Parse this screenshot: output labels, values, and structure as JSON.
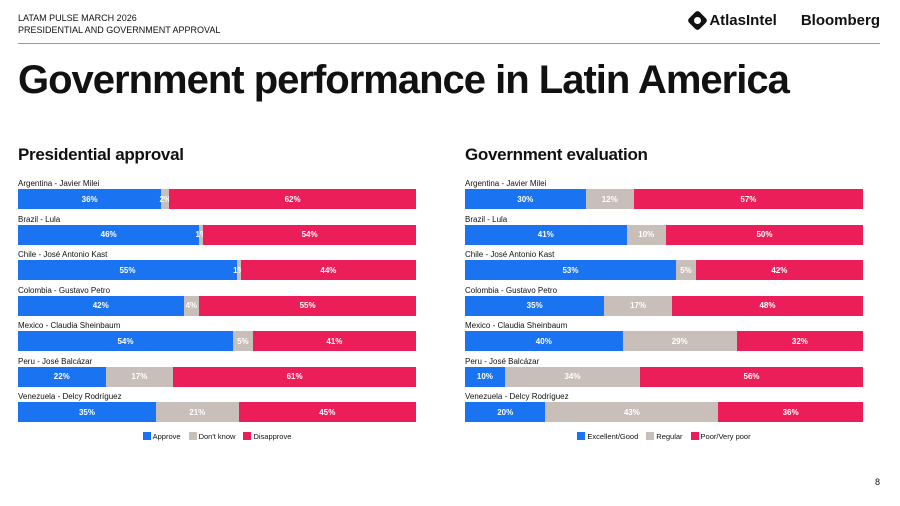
{
  "header": {
    "line1": "LATAM PULSE MARCH 2026",
    "line2": "PRESIDENTIAL AND GOVERNMENT APPROVAL",
    "logo1": "AtlasIntel",
    "logo2": "Bloomberg"
  },
  "title": "Government performance in Latin America",
  "page_number": "8",
  "colors": {
    "blue": "#1a73f0",
    "gray": "#c8bfba",
    "pink": "#ec1e5a"
  },
  "chart_data": [
    {
      "type": "bar",
      "orientation": "horizontal-stacked-100",
      "title": "Presidential approval",
      "categories": [
        "Argentina - Javier Milei",
        "Brazil - Lula",
        "Chile - José Antonio Kast",
        "Colombia - Gustavo Petro",
        "Mexico - Claudia Sheinbaum",
        "Peru - José Balcázar",
        "Venezuela - Delcy Rodríguez"
      ],
      "series": [
        {
          "name": "Approve",
          "color": "#1a73f0",
          "values": [
            36,
            46,
            55,
            42,
            54,
            22,
            35
          ]
        },
        {
          "name": "Don't know",
          "color": "#c8bfba",
          "values": [
            2,
            1,
            1,
            4,
            5,
            17,
            21
          ]
        },
        {
          "name": "Disapprove",
          "color": "#ec1e5a",
          "values": [
            62,
            54,
            44,
            55,
            41,
            61,
            45
          ]
        }
      ],
      "legend": "bottom"
    },
    {
      "type": "bar",
      "orientation": "horizontal-stacked-100",
      "title": "Government evaluation",
      "categories": [
        "Argentina - Javier Milei",
        "Brazil - Lula",
        "Chile - José Antonio Kast",
        "Colombia - Gustavo Petro",
        "Mexico - Claudia Sheinbaum",
        "Peru - José Balcázar",
        "Venezuela - Delcy Rodríguez"
      ],
      "series": [
        {
          "name": "Excellent/Good",
          "color": "#1a73f0",
          "values": [
            30,
            41,
            53,
            35,
            40,
            10,
            20
          ]
        },
        {
          "name": "Regular",
          "color": "#c8bfba",
          "values": [
            12,
            10,
            5,
            17,
            29,
            34,
            43
          ]
        },
        {
          "name": "Poor/Very poor",
          "color": "#ec1e5a",
          "values": [
            57,
            50,
            42,
            48,
            32,
            56,
            36
          ]
        }
      ],
      "legend": "bottom"
    }
  ]
}
